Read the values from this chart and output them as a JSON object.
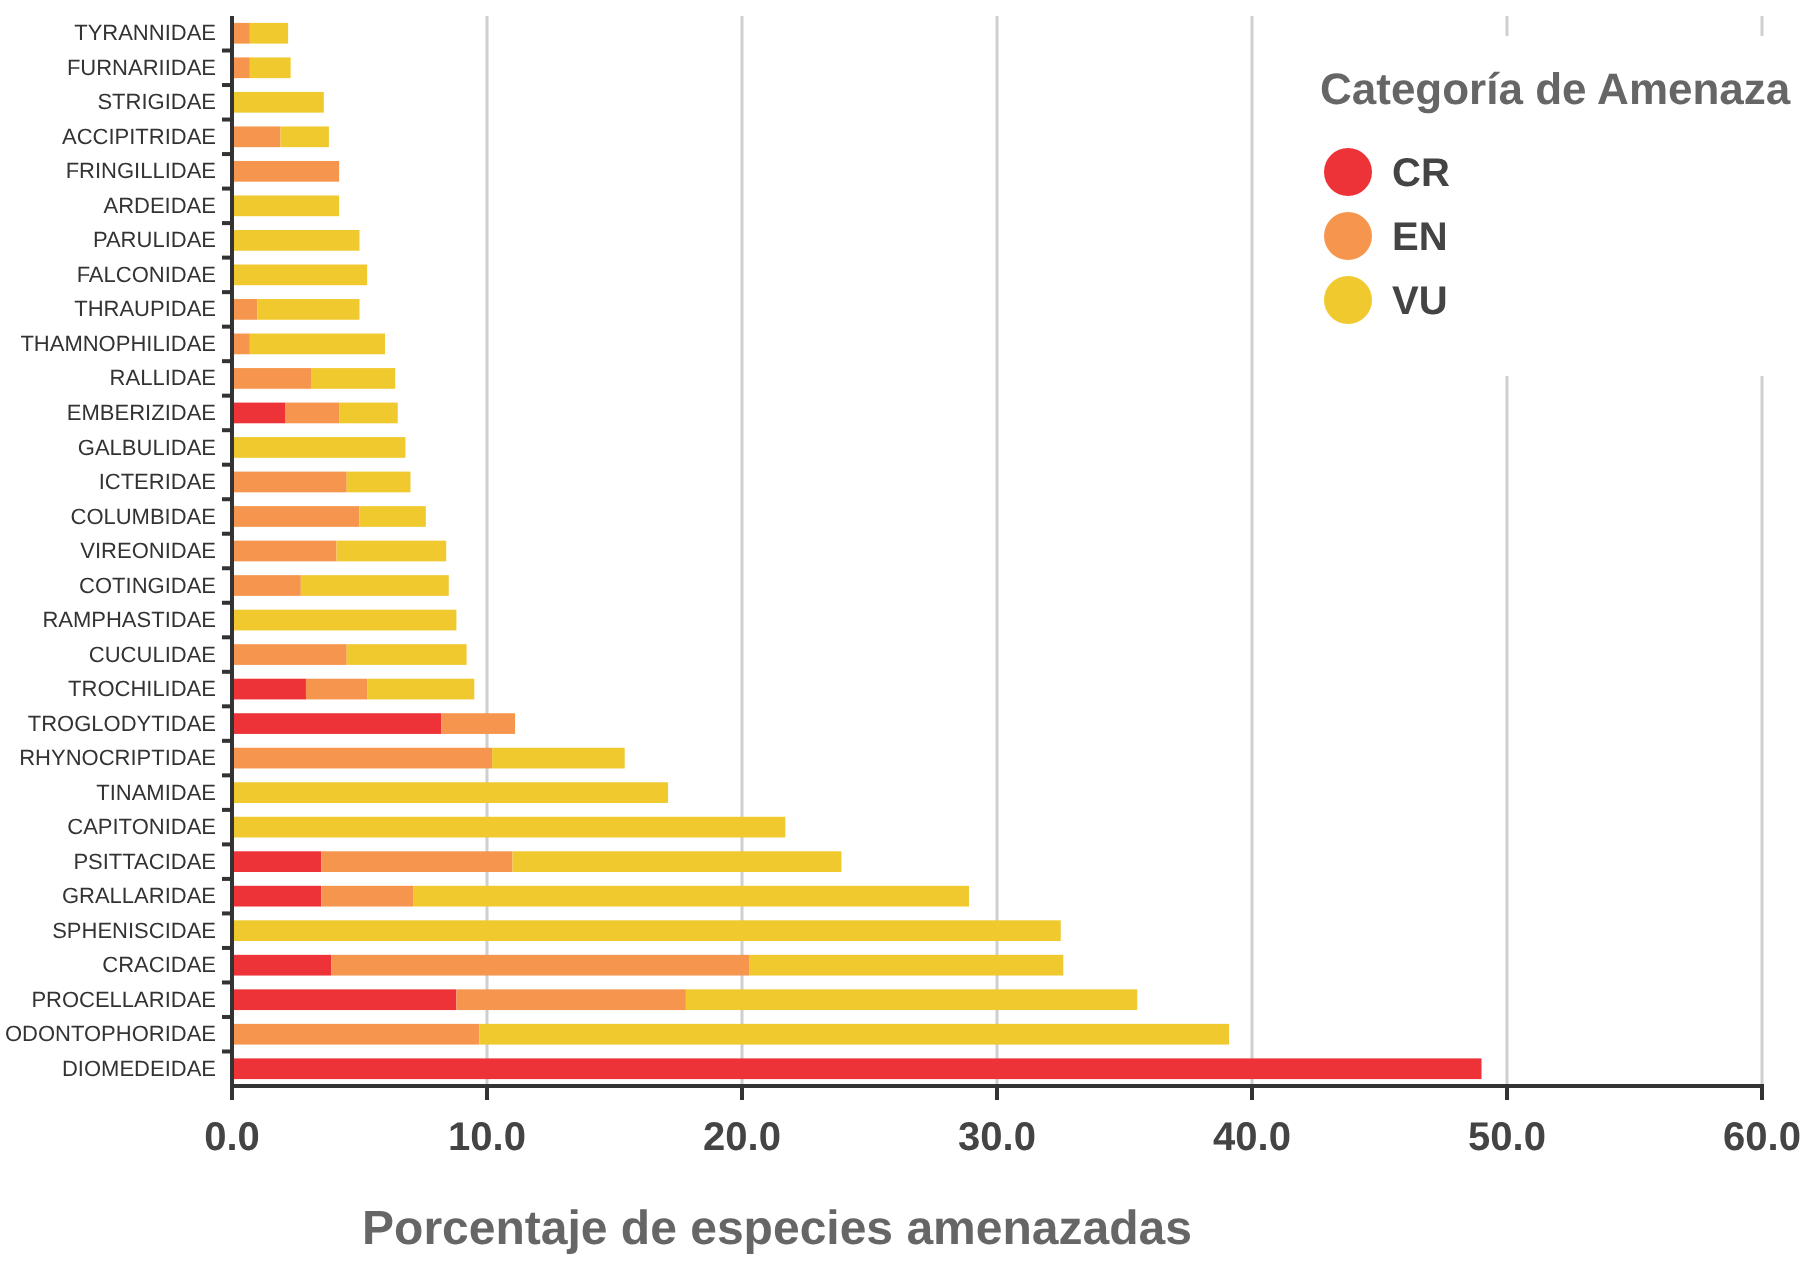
{
  "chart_data": {
    "type": "bar",
    "orientation": "horizontal",
    "stacked": true,
    "xlabel": "Porcentaje de especies amenazadas",
    "legend_title": "Categoría de Amenaza",
    "legend": "top right",
    "grid": "x",
    "categories": [
      "TYRANNIDAE",
      "FURNARIIDAE",
      "STRIGIDAE",
      "ACCIPITRIDAE",
      "FRINGILLIDAE",
      "ARDEIDAE",
      "PARULIDAE",
      "FALCONIDAE",
      "THRAUPIDAE",
      "THAMNOPHILIDAE",
      "RALLIDAE",
      "EMBERIZIDAE",
      "GALBULIDAE",
      "ICTERIDAE",
      "COLUMBIDAE",
      "VIREONIDAE",
      "COTINGIDAE",
      "RAMPHASTIDAE",
      "CUCULIDAE",
      "TROCHILIDAE",
      "TROGLODYTIDAE",
      "RHYNOCRIPTIDAE",
      "TINAMIDAE",
      "CAPITONIDAE",
      "PSITTACIDAE",
      "GRALLARIDAE",
      "SPHENISCIDAE",
      "CRACIDAE",
      "PROCELLARIDAE",
      "ODONTOPHORIDAE",
      "DIOMEDEIDAE"
    ],
    "series": [
      {
        "name": "CR",
        "color": "#ee3338",
        "values": [
          null,
          null,
          null,
          null,
          null,
          null,
          null,
          null,
          null,
          null,
          null,
          2.1,
          null,
          null,
          null,
          null,
          null,
          null,
          null,
          2.9,
          8.2,
          null,
          null,
          null,
          3.5,
          3.5,
          null,
          3.9,
          8.8,
          null,
          49.0
        ]
      },
      {
        "name": "EN",
        "color": "#f6964e",
        "values": [
          0.7,
          0.7,
          null,
          1.9,
          4.2,
          null,
          null,
          null,
          1.0,
          0.7,
          3.1,
          2.1,
          null,
          4.5,
          5.0,
          4.1,
          2.7,
          null,
          4.5,
          2.4,
          2.9,
          10.2,
          null,
          null,
          7.5,
          3.6,
          null,
          16.4,
          9.0,
          9.7,
          null
        ]
      },
      {
        "name": "VU",
        "color": "#f0c92e",
        "values": [
          1.5,
          1.6,
          3.6,
          1.9,
          null,
          4.2,
          5.0,
          5.3,
          4.0,
          5.3,
          3.3,
          2.3,
          6.8,
          2.5,
          2.6,
          4.3,
          5.8,
          8.8,
          4.7,
          4.2,
          null,
          5.2,
          17.1,
          21.7,
          12.9,
          21.8,
          32.5,
          12.3,
          17.7,
          29.4,
          null
        ]
      }
    ],
    "xlim": [
      0,
      60
    ],
    "xticks": [
      {
        "value": 0,
        "label": "0.0"
      },
      {
        "value": 10,
        "label": "10.0"
      },
      {
        "value": 20,
        "label": "20.0"
      },
      {
        "value": 30,
        "label": "30.0"
      },
      {
        "value": 40,
        "label": "40.0"
      },
      {
        "value": 50,
        "label": "50.0"
      },
      {
        "value": 60,
        "label": "60.0"
      }
    ]
  }
}
